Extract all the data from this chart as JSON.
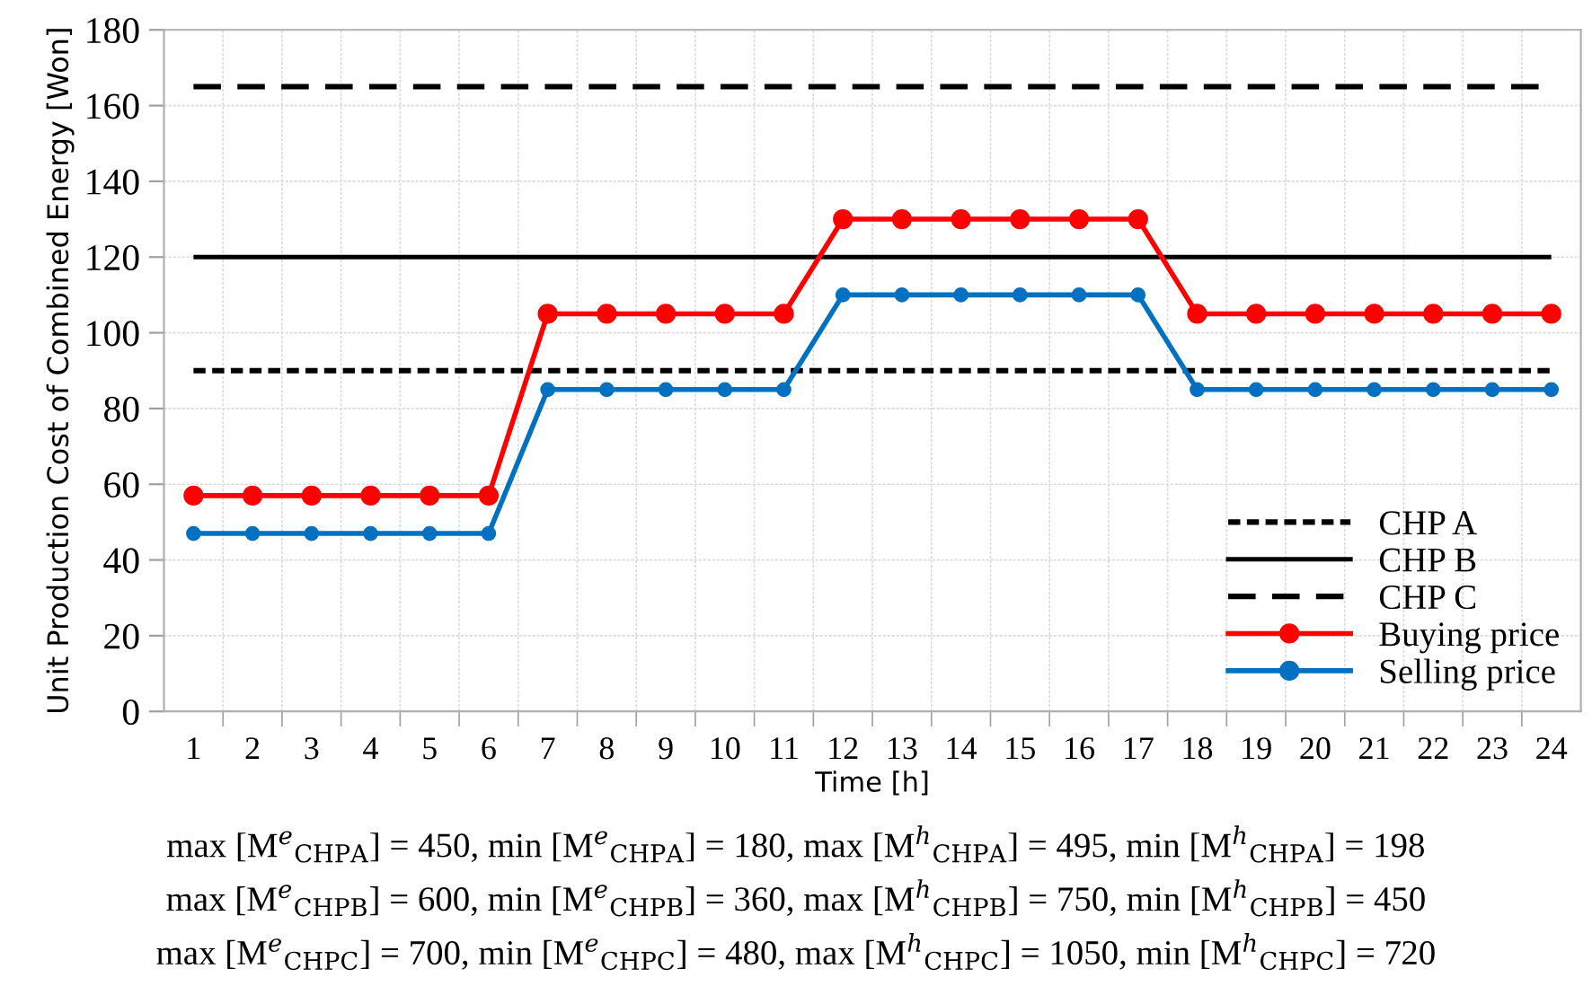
{
  "chart_data": {
    "type": "line",
    "xlabel": "Time [h]",
    "ylabel": "Unit Production Cost of Combined Energy [Won]",
    "categories": [
      "1",
      "2",
      "3",
      "4",
      "5",
      "6",
      "7",
      "8",
      "9",
      "10",
      "11",
      "12",
      "13",
      "14",
      "15",
      "16",
      "17",
      "18",
      "19",
      "20",
      "21",
      "22",
      "23",
      "24"
    ],
    "series": [
      {
        "name": "Buying price",
        "color": "#ff0000",
        "marker": "circle",
        "values": [
          57,
          57,
          57,
          57,
          57,
          57,
          105,
          105,
          105,
          105,
          105,
          130,
          130,
          130,
          130,
          130,
          130,
          105,
          105,
          105,
          105,
          105,
          105,
          105
        ]
      },
      {
        "name": "Selling price",
        "color": "#0070c0",
        "marker": "circle",
        "values": [
          47,
          47,
          47,
          47,
          47,
          47,
          85,
          85,
          85,
          85,
          85,
          110,
          110,
          110,
          110,
          110,
          110,
          85,
          85,
          85,
          85,
          85,
          85,
          85
        ]
      }
    ],
    "ref_lines": [
      {
        "axis": "y",
        "value": 90,
        "label": "CHP A",
        "color": "#000000",
        "line_style": "dotted"
      },
      {
        "axis": "y",
        "value": 120,
        "label": "CHP B",
        "color": "#000000",
        "line_style": "solid"
      },
      {
        "axis": "y",
        "value": 165,
        "label": "CHP C",
        "color": "#000000",
        "line_style": "dashed"
      }
    ],
    "ylim": [
      0,
      180
    ],
    "yticks": [
      0,
      20,
      40,
      60,
      80,
      100,
      120,
      140,
      160,
      180
    ],
    "grid": true,
    "legend": "bottom right",
    "line_style": "solid",
    "annotations": [
      "max [M$^{e}$$_{CHPA}$] = 450, min [M$^{e}$$_{CHPA}$] = 180, max [M$^{h}$$_{CHPA}$] = 495, min [M$^{h}$$_{CHPA}$] = 198",
      "max [M$^{e}$$_{CHPB}$] = 600, min [M$^{e}$$_{CHPB}$] = 360, max [M$^{h}$$_{CHPB}$] = 750, min [M$^{h}$$_{CHPB}$] = 450",
      "max [M$^{e}$$_{CHPC}$] = 700, min [M$^{e}$$_{CHPC}$] = 480, max [M$^{h}$$_{CHPC}$] = 1050, min [M$^{h}$$_{CHPC}$] = 720"
    ]
  }
}
